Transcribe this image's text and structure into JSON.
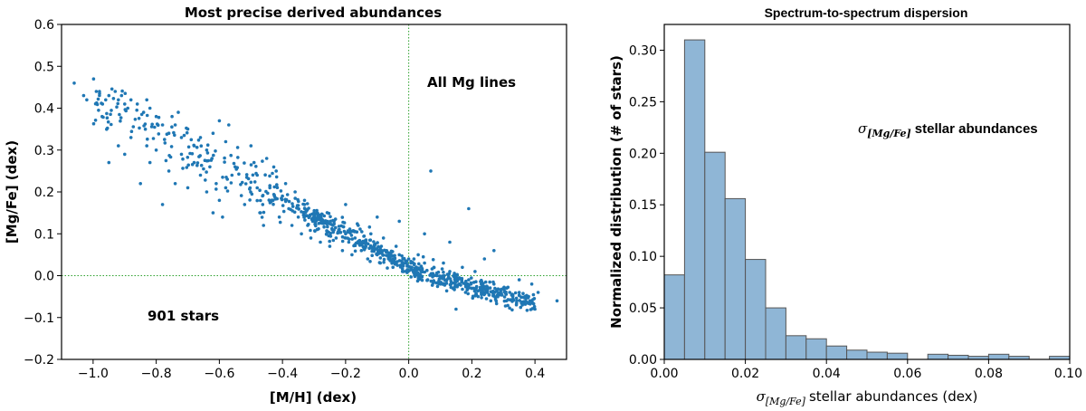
{
  "chart_data": [
    {
      "type": "scatter",
      "title": "Most precise derived abundances",
      "xlabel": "[M/H] (dex)",
      "ylabel": "[Mg/Fe] (dex)",
      "xlim": [
        -1.1,
        0.5
      ],
      "ylim": [
        -0.2,
        0.6
      ],
      "xticks": [
        "−1.0",
        "−0.8",
        "−0.6",
        "−0.4",
        "−0.2",
        "0.0",
        "0.2",
        "0.4"
      ],
      "xtick_values": [
        -1.0,
        -0.8,
        -0.6,
        -0.4,
        -0.2,
        0.0,
        0.2,
        0.4
      ],
      "yticks": [
        "−0.2",
        "−0.1",
        "0.0",
        "0.1",
        "0.2",
        "0.3",
        "0.4",
        "0.5",
        "0.6"
      ],
      "ytick_values": [
        -0.2,
        -0.1,
        0.0,
        0.1,
        0.2,
        0.3,
        0.4,
        0.5,
        0.6
      ],
      "reference_lines": {
        "x": 0.0,
        "y": 0.0,
        "style": "dotted",
        "color": "#2ca02c"
      },
      "annotations": [
        "All Mg lines",
        "901 stars"
      ],
      "point_color": "#1f77b4",
      "n_points": 901,
      "trend": {
        "from": [
          -1.05,
          0.42
        ],
        "to": [
          0.45,
          -0.05
        ]
      },
      "points": [
        [
          -1.06,
          0.46
        ],
        [
          -1.03,
          0.43
        ],
        [
          -1.02,
          0.42
        ],
        [
          -0.99,
          0.44
        ],
        [
          -0.98,
          0.44
        ],
        [
          -0.97,
          0.41
        ],
        [
          -0.96,
          0.42
        ],
        [
          -0.95,
          0.43
        ],
        [
          -0.93,
          0.44
        ],
        [
          -0.92,
          0.42
        ],
        [
          -0.91,
          0.43
        ],
        [
          -0.9,
          0.41
        ],
        [
          -0.89,
          0.4
        ],
        [
          -0.88,
          0.42
        ],
        [
          -0.86,
          0.41
        ],
        [
          -0.84,
          0.39
        ],
        [
          -0.83,
          0.42
        ],
        [
          -0.82,
          0.4
        ],
        [
          -0.8,
          0.38
        ],
        [
          -0.78,
          0.36
        ],
        [
          -0.76,
          0.34
        ],
        [
          -0.75,
          0.38
        ],
        [
          -0.74,
          0.36
        ],
        [
          -0.73,
          0.39
        ],
        [
          -0.72,
          0.33
        ],
        [
          -0.7,
          0.35
        ],
        [
          -0.68,
          0.31
        ],
        [
          -0.66,
          0.33
        ],
        [
          -0.64,
          0.3
        ],
        [
          -0.62,
          0.34
        ],
        [
          -0.6,
          0.37
        ],
        [
          -0.58,
          0.32
        ],
        [
          -0.57,
          0.36
        ],
        [
          -0.95,
          0.27
        ],
        [
          -0.92,
          0.31
        ],
        [
          -0.9,
          0.29
        ],
        [
          -0.88,
          0.33
        ],
        [
          -0.85,
          0.22
        ],
        [
          -0.83,
          0.31
        ],
        [
          -0.82,
          0.27
        ],
        [
          -0.8,
          0.3
        ],
        [
          -0.78,
          0.17
        ],
        [
          -0.76,
          0.25
        ],
        [
          -0.74,
          0.22
        ],
        [
          -0.72,
          0.29
        ],
        [
          -0.7,
          0.21
        ],
        [
          -0.68,
          0.27
        ],
        [
          -0.66,
          0.24
        ],
        [
          -0.64,
          0.2
        ],
        [
          -0.63,
          0.26
        ],
        [
          -0.62,
          0.15
        ],
        [
          -0.61,
          0.22
        ],
        [
          -0.6,
          0.18
        ],
        [
          -0.59,
          0.14
        ],
        [
          -0.58,
          0.21
        ],
        [
          -0.56,
          0.24
        ],
        [
          -0.55,
          0.26
        ],
        [
          -0.52,
          0.17
        ],
        [
          -0.5,
          0.31
        ],
        [
          -0.49,
          0.27
        ],
        [
          -0.48,
          0.24
        ],
        [
          -0.47,
          0.15
        ],
        [
          -0.46,
          0.12
        ],
        [
          -0.45,
          0.28
        ],
        [
          -0.44,
          0.21
        ],
        [
          -0.43,
          0.18
        ],
        [
          -0.42,
          0.25
        ],
        [
          -0.41,
          0.14
        ],
        [
          -0.4,
          0.19
        ],
        [
          -0.39,
          0.22
        ],
        [
          -0.38,
          0.16
        ],
        [
          -0.37,
          0.12
        ],
        [
          -0.36,
          0.2
        ],
        [
          -0.35,
          0.14
        ],
        [
          -0.34,
          0.1
        ],
        [
          -0.33,
          0.17
        ],
        [
          -0.32,
          0.12
        ],
        [
          -0.31,
          0.09
        ],
        [
          -0.3,
          0.15
        ],
        [
          -0.29,
          0.11
        ],
        [
          -0.28,
          0.08
        ],
        [
          -0.27,
          0.13
        ],
        [
          -0.26,
          0.1
        ],
        [
          -0.25,
          0.07
        ],
        [
          -0.24,
          0.12
        ],
        [
          -0.23,
          0.09
        ],
        [
          -0.22,
          0.11
        ],
        [
          -0.21,
          0.06
        ],
        [
          -0.2,
          0.1
        ],
        [
          -0.19,
          0.08
        ],
        [
          -0.18,
          0.05
        ],
        [
          -0.17,
          0.09
        ],
        [
          -0.16,
          0.12
        ],
        [
          -0.15,
          0.06
        ],
        [
          -0.14,
          0.08
        ],
        [
          -0.13,
          0.04
        ],
        [
          -0.12,
          0.1
        ],
        [
          -0.11,
          0.07
        ],
        [
          -0.1,
          0.05
        ],
        [
          -0.09,
          0.03
        ],
        [
          -0.08,
          0.09
        ],
        [
          -0.07,
          0.06
        ],
        [
          -0.06,
          0.04
        ],
        [
          -0.05,
          0.02
        ],
        [
          -0.04,
          0.07
        ],
        [
          -0.03,
          0.05
        ],
        [
          -0.02,
          0.01
        ],
        [
          -0.01,
          0.03
        ],
        [
          0.0,
          0.04
        ],
        [
          0.01,
          0.02
        ],
        [
          0.02,
          0.0
        ],
        [
          0.03,
          0.05
        ],
        [
          0.04,
          0.01
        ],
        [
          0.05,
          0.03
        ],
        [
          0.06,
          -0.01
        ],
        [
          0.07,
          0.25
        ],
        [
          0.08,
          0.02
        ],
        [
          0.09,
          0.0
        ],
        [
          0.1,
          -0.02
        ],
        [
          0.11,
          0.03
        ],
        [
          0.12,
          -0.01
        ],
        [
          0.13,
          0.01
        ],
        [
          0.14,
          -0.03
        ],
        [
          0.15,
          0.0
        ],
        [
          0.16,
          -0.02
        ],
        [
          0.17,
          0.02
        ],
        [
          0.18,
          -0.04
        ],
        [
          0.19,
          -0.01
        ],
        [
          0.2,
          -0.03
        ],
        [
          0.21,
          0.01
        ],
        [
          0.22,
          -0.05
        ],
        [
          0.23,
          -0.02
        ],
        [
          0.24,
          -0.04
        ],
        [
          0.25,
          -0.03
        ],
        [
          0.26,
          -0.06
        ],
        [
          0.27,
          -0.02
        ],
        [
          0.28,
          -0.05
        ],
        [
          0.29,
          -0.04
        ],
        [
          0.3,
          -0.03
        ],
        [
          0.31,
          -0.06
        ],
        [
          0.32,
          -0.04
        ],
        [
          0.33,
          -0.05
        ],
        [
          0.35,
          -0.04
        ],
        [
          0.36,
          -0.07
        ],
        [
          0.38,
          -0.05
        ],
        [
          0.4,
          -0.08
        ],
        [
          0.47,
          -0.06
        ],
        [
          0.19,
          0.16
        ],
        [
          0.27,
          0.06
        ],
        [
          0.35,
          -0.01
        ],
        [
          0.41,
          -0.04
        ],
        [
          0.39,
          -0.02
        ],
        [
          0.15,
          -0.08
        ],
        [
          0.05,
          0.1
        ],
        [
          -0.03,
          0.13
        ],
        [
          -0.1,
          0.14
        ],
        [
          -0.33,
          0.18
        ],
        [
          -0.2,
          0.17
        ],
        [
          0.13,
          0.08
        ],
        [
          0.24,
          0.04
        ]
      ]
    },
    {
      "type": "bar",
      "title": "Spectrum-to-spectrum dispersion",
      "xlabel": "stellar abundances (dex)",
      "xlabel_symbol": "σ",
      "xlabel_subscript": "[Mg/Fe]",
      "ylabel": "Normalized distribution (# of stars)",
      "annotation": "stellar abundances",
      "annotation_symbol": "σ",
      "annotation_subscript": "[Mg/Fe]",
      "xlim": [
        0.0,
        0.1
      ],
      "ylim": [
        0.0,
        0.325
      ],
      "xticks": [
        "0.00",
        "0.02",
        "0.04",
        "0.06",
        "0.08",
        "0.10"
      ],
      "xtick_values": [
        0.0,
        0.02,
        0.04,
        0.06,
        0.08,
        0.1
      ],
      "yticks": [
        "0.00",
        "0.05",
        "0.10",
        "0.15",
        "0.20",
        "0.25",
        "0.30"
      ],
      "ytick_values": [
        0.0,
        0.05,
        0.1,
        0.15,
        0.2,
        0.25,
        0.3
      ],
      "bar_color": "#8fb6d6",
      "edge_color": "#555555",
      "bin_width": 0.005,
      "bin_starts": [
        0.0,
        0.005,
        0.01,
        0.015,
        0.02,
        0.025,
        0.03,
        0.035,
        0.04,
        0.045,
        0.05,
        0.055,
        0.06,
        0.065,
        0.07,
        0.075,
        0.08,
        0.085,
        0.09,
        0.095
      ],
      "values": [
        0.082,
        0.31,
        0.201,
        0.156,
        0.097,
        0.05,
        0.023,
        0.02,
        0.013,
        0.009,
        0.007,
        0.006,
        0.0,
        0.005,
        0.004,
        0.003,
        0.005,
        0.003,
        0.0,
        0.003
      ]
    }
  ]
}
